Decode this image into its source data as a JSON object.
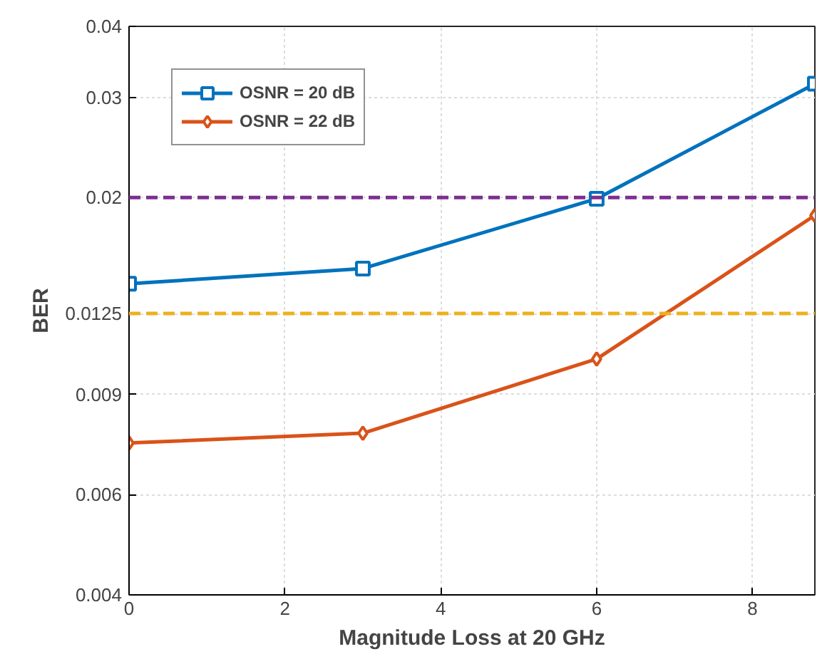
{
  "chart_data": {
    "type": "line",
    "xlabel": "Magnitude Loss at 20 GHz",
    "ylabel": "BER",
    "log": "y",
    "xlim": [
      0,
      8.8
    ],
    "xticks": [
      0,
      2,
      4,
      6,
      8
    ],
    "ylim": [
      0.004,
      0.04
    ],
    "yticks": [
      0.004,
      0.006,
      0.009,
      0.0125,
      0.02,
      0.03,
      0.04
    ],
    "x": [
      0,
      3,
      6,
      8.8
    ],
    "series": [
      {
        "name": "OSNR = 20 dB",
        "color": "#0072bd",
        "marker": "square",
        "values": [
          0.0141,
          0.015,
          0.0199,
          0.0317
        ]
      },
      {
        "name": "OSNR = 22 dB",
        "color": "#d95319",
        "marker": "diamond",
        "values": [
          0.0074,
          0.0077,
          0.0104,
          0.0186
        ]
      }
    ],
    "ref_lines": [
      {
        "axis": "y",
        "value": 0.02,
        "color": "#7e2f8e",
        "line_style": "dashed"
      },
      {
        "axis": "y",
        "value": 0.0125,
        "color": "#edb120",
        "line_style": "dashed"
      }
    ],
    "grid": true,
    "legend": "top left",
    "line_style": "solid"
  }
}
